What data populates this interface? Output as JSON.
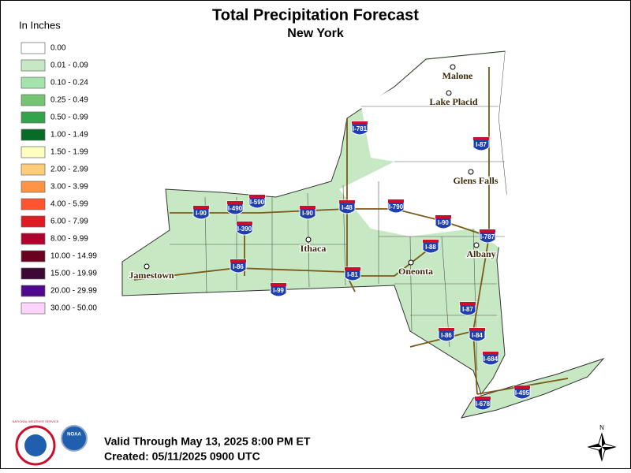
{
  "title": "Total Precipitation Forecast",
  "subtitle": "New York",
  "legend": {
    "title": "In Inches",
    "items": [
      {
        "label": "0.00",
        "color": "#ffffff"
      },
      {
        "label": "0.01 - 0.09",
        "color": "#c6e8c2"
      },
      {
        "label": "0.10 - 0.24",
        "color": "#a4e4ac"
      },
      {
        "label": "0.25 - 0.49",
        "color": "#74c474"
      },
      {
        "label": "0.50 - 0.99",
        "color": "#34a44c"
      },
      {
        "label": "1.00 - 1.49",
        "color": "#086c28"
      },
      {
        "label": "1.50 - 1.99",
        "color": "#ffffc0"
      },
      {
        "label": "2.00 - 2.99",
        "color": "#ffcc78"
      },
      {
        "label": "3.00 - 3.99",
        "color": "#ff9444"
      },
      {
        "label": "4.00 - 5.99",
        "color": "#ff5430"
      },
      {
        "label": "6.00 - 7.99",
        "color": "#dc1c20"
      },
      {
        "label": "8.00 - 9.99",
        "color": "#b00030"
      },
      {
        "label": "10.00 - 14.99",
        "color": "#6c0020"
      },
      {
        "label": "15.00 - 19.99",
        "color": "#3c0834"
      },
      {
        "label": "20.00 - 29.99",
        "color": "#50088c"
      },
      {
        "label": "30.00 - 50.00",
        "color": "#ffd4fc"
      }
    ]
  },
  "cities": [
    "Malone",
    "Lake Placid",
    "Glens Falls",
    "Albany",
    "Ithaca",
    "Jamestown",
    "Oneonta"
  ],
  "interstates": [
    "I-781",
    "I-87",
    "I-90",
    "I-490",
    "I-590",
    "I-390",
    "I-90",
    "I-48",
    "I-790",
    "I-90",
    "I-787",
    "I-88",
    "I-86",
    "I-99",
    "I-81",
    "I-87",
    "I-86",
    "I-84",
    "I-684",
    "I-678",
    "I-495"
  ],
  "footer": {
    "valid": "Valid Through May 13, 2025 8:00 PM ET",
    "created": "Created: 05/11/2025 0900 UTC"
  },
  "logos": {
    "nws": "NATIONAL WEATHER SERVICE",
    "noaa": "NOAA"
  },
  "north": "N"
}
